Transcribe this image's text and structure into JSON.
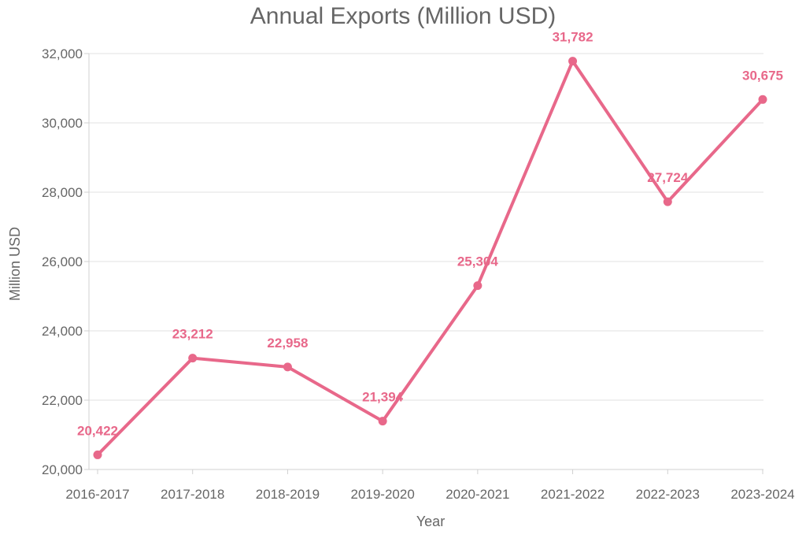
{
  "chart_data": {
    "type": "line",
    "title": "Annual Exports (Million USD)",
    "xlabel": "Year",
    "ylabel": "Million USD",
    "categories": [
      "2016-2017",
      "2017-2018",
      "2018-2019",
      "2019-2020",
      "2020-2021",
      "2021-2022",
      "2022-2023",
      "2023-2024"
    ],
    "series": [
      {
        "values": [
          20422,
          23212,
          22958,
          21394,
          25304,
          31782,
          27724,
          30675
        ],
        "value_labels": [
          "20,422",
          "23,212",
          "22,958",
          "21,394",
          "25,304",
          "31,782",
          "27,724",
          "30,675"
        ]
      }
    ],
    "ylim": [
      20000,
      32000
    ],
    "yticks": [
      20000,
      22000,
      24000,
      26000,
      28000,
      30000,
      32000
    ],
    "ytick_labels": [
      "20,000",
      "22,000",
      "24,000",
      "26,000",
      "28,000",
      "30,000",
      "32,000"
    ],
    "grid": true,
    "legend": "none",
    "color": "#e8688a"
  }
}
